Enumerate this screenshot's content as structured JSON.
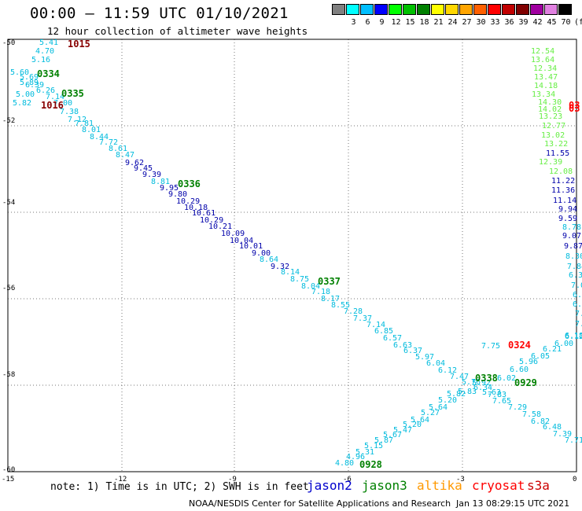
{
  "header": {
    "title": "00:00 – 11:59 UTC 01/10/2021",
    "subtitle": "12 hour collection of altimeter wave heights"
  },
  "legend": {
    "unit": "(ft)",
    "items": [
      {
        "label": "",
        "color": "#808080"
      },
      {
        "label": "3",
        "color": "#00FFFF"
      },
      {
        "label": "6",
        "color": "#00BFFF"
      },
      {
        "label": "9",
        "color": "#0000FF"
      },
      {
        "label": "12",
        "color": "#00FF00"
      },
      {
        "label": "15",
        "color": "#00C000"
      },
      {
        "label": "18",
        "color": "#008000"
      },
      {
        "label": "21",
        "color": "#FFFF00"
      },
      {
        "label": "24",
        "color": "#FFD700"
      },
      {
        "label": "27",
        "color": "#FFA500"
      },
      {
        "label": "30",
        "color": "#FF6000"
      },
      {
        "label": "33",
        "color": "#FF0000"
      },
      {
        "label": "36",
        "color": "#C00000"
      },
      {
        "label": "39",
        "color": "#800000"
      },
      {
        "label": "42",
        "color": "#A000A0"
      },
      {
        "label": "45",
        "color": "#E080E0"
      },
      {
        "label": "70",
        "color": "#000000"
      }
    ]
  },
  "axes": {
    "x_ticks": [
      "-15",
      "-12",
      "-9",
      "-6",
      "-3",
      "0"
    ],
    "y_ticks": [
      "-50",
      "-52",
      "-54",
      "-56",
      "-58",
      "-60"
    ]
  },
  "colors": {
    "jason2": "#0000CC",
    "jason3": "#008000",
    "altika": "#FF9900",
    "cryosat": "#FF0000",
    "s3a": "#CC0000",
    "cyan": "#00BBDD",
    "darkblue": "#0000AA",
    "lightgreen": "#66EE44",
    "maroon": "#880000"
  },
  "track1": [
    {
      "v": "5.41",
      "c": "cyan"
    },
    {
      "v": "4.70",
      "c": "cyan"
    },
    {
      "v": "5.16",
      "c": "cyan"
    },
    {
      "v": "5.60",
      "c": "cyan"
    },
    {
      "v": "5.69",
      "c": "cyan"
    },
    {
      "v": "5.89",
      "c": "cyan"
    },
    {
      "v": "6.39",
      "c": "cyan"
    },
    {
      "v": "6.26",
      "c": "cyan"
    },
    {
      "v": "5.00",
      "c": "cyan"
    },
    {
      "v": "7.14",
      "c": "cyan"
    },
    {
      "v": "5.82",
      "c": "cyan"
    },
    {
      "v": "7.00",
      "c": "cyan"
    },
    {
      "v": "7.38",
      "c": "cyan"
    },
    {
      "v": "7.12",
      "c": "cyan"
    },
    {
      "v": "7.81",
      "c": "cyan"
    },
    {
      "v": "8.01",
      "c": "cyan"
    },
    {
      "v": "8.44",
      "c": "cyan"
    },
    {
      "v": "7.72",
      "c": "cyan"
    },
    {
      "v": "8.61",
      "c": "cyan"
    },
    {
      "v": "8.47",
      "c": "cyan"
    },
    {
      "v": "9.62",
      "c": "darkblue"
    },
    {
      "v": "9.45",
      "c": "darkblue"
    },
    {
      "v": "9.39",
      "c": "darkblue"
    },
    {
      "v": "8.81",
      "c": "cyan"
    },
    {
      "v": "9.95",
      "c": "darkblue"
    },
    {
      "v": "9.80",
      "c": "darkblue"
    },
    {
      "v": "10.29",
      "c": "darkblue"
    },
    {
      "v": "10.18",
      "c": "darkblue"
    },
    {
      "v": "10.61",
      "c": "darkblue"
    },
    {
      "v": "10.29",
      "c": "darkblue"
    },
    {
      "v": "10.21",
      "c": "darkblue"
    },
    {
      "v": "10.09",
      "c": "darkblue"
    },
    {
      "v": "10.04",
      "c": "darkblue"
    },
    {
      "v": "10.01",
      "c": "darkblue"
    },
    {
      "v": "9.00",
      "c": "darkblue"
    },
    {
      "v": "8.64",
      "c": "cyan"
    },
    {
      "v": "9.32",
      "c": "darkblue"
    },
    {
      "v": "8.14",
      "c": "cyan"
    },
    {
      "v": "8.75",
      "c": "cyan"
    },
    {
      "v": "8.04",
      "c": "cyan"
    },
    {
      "v": "7.18",
      "c": "cyan"
    },
    {
      "v": "8.17",
      "c": "cyan"
    },
    {
      "v": "8.55",
      "c": "cyan"
    },
    {
      "v": "7.28",
      "c": "cyan"
    },
    {
      "v": "7.37",
      "c": "cyan"
    },
    {
      "v": "7.14",
      "c": "cyan"
    },
    {
      "v": "6.85",
      "c": "cyan"
    },
    {
      "v": "6.57",
      "c": "cyan"
    },
    {
      "v": "6.63",
      "c": "cyan"
    },
    {
      "v": "6.37",
      "c": "cyan"
    },
    {
      "v": "5.97",
      "c": "cyan"
    },
    {
      "v": "6.04",
      "c": "cyan"
    },
    {
      "v": "6.12",
      "c": "cyan"
    },
    {
      "v": "7.47",
      "c": "cyan"
    },
    {
      "v": "5.76",
      "c": "cyan"
    },
    {
      "v": "6.34",
      "c": "cyan"
    },
    {
      "v": "5.63",
      "c": "cyan"
    },
    {
      "v": "7.83",
      "c": "cyan"
    },
    {
      "v": "7.65",
      "c": "cyan"
    },
    {
      "v": "7.29",
      "c": "cyan"
    },
    {
      "v": "7.58",
      "c": "cyan"
    },
    {
      "v": "6.82",
      "c": "cyan"
    },
    {
      "v": "6.48",
      "c": "cyan"
    },
    {
      "v": "7.39",
      "c": "cyan"
    },
    {
      "v": "7.71",
      "c": "cyan"
    }
  ],
  "track2": [
    {
      "v": "4.80",
      "c": "cyan"
    },
    {
      "v": "4.96",
      "c": "cyan"
    },
    {
      "v": "5.31",
      "c": "cyan"
    },
    {
      "v": "5.15",
      "c": "cyan"
    },
    {
      "v": "5.87",
      "c": "cyan"
    },
    {
      "v": "5.67",
      "c": "cyan"
    },
    {
      "v": "5.47",
      "c": "cyan"
    },
    {
      "v": "5.20",
      "c": "cyan"
    },
    {
      "v": "5.64",
      "c": "cyan"
    },
    {
      "v": "5.27",
      "c": "cyan"
    },
    {
      "v": "5.64",
      "c": "cyan"
    },
    {
      "v": "5.20",
      "c": "cyan"
    },
    {
      "v": "5.82",
      "c": "cyan"
    },
    {
      "v": "5.83",
      "c": "cyan"
    },
    {
      "v": "5.92",
      "c": "cyan"
    },
    {
      "v": "6.02",
      "c": "cyan"
    },
    {
      "v": "6.60",
      "c": "cyan"
    },
    {
      "v": "5.96",
      "c": "cyan"
    },
    {
      "v": "6.05",
      "c": "cyan"
    },
    {
      "v": "6.21",
      "c": "cyan"
    },
    {
      "v": "6.00",
      "c": "cyan"
    },
    {
      "v": "6.18",
      "c": "cyan"
    },
    {
      "v": "7.75",
      "c": "cyan"
    }
  ],
  "track3": [
    {
      "v": "12.54",
      "c": "lightgreen"
    },
    {
      "v": "13.64",
      "c": "lightgreen"
    },
    {
      "v": "12.34",
      "c": "lightgreen"
    },
    {
      "v": "13.47",
      "c": "lightgreen"
    },
    {
      "v": "14.18",
      "c": "lightgreen"
    },
    {
      "v": "13.34",
      "c": "lightgreen"
    },
    {
      "v": "14.30",
      "c": "lightgreen"
    },
    {
      "v": "14.02",
      "c": "lightgreen"
    },
    {
      "v": "13.23",
      "c": "lightgreen"
    },
    {
      "v": "12.77",
      "c": "lightgreen"
    },
    {
      "v": "13.02",
      "c": "lightgreen"
    },
    {
      "v": "13.22",
      "c": "lightgreen"
    },
    {
      "v": "11.55",
      "c": "darkblue"
    },
    {
      "v": "12.39",
      "c": "lightgreen"
    },
    {
      "v": "12.08",
      "c": "lightgreen"
    },
    {
      "v": "11.22",
      "c": "darkblue"
    },
    {
      "v": "11.36",
      "c": "darkblue"
    },
    {
      "v": "11.14",
      "c": "darkblue"
    },
    {
      "v": "9.94",
      "c": "darkblue"
    },
    {
      "v": "9.59",
      "c": "darkblue"
    },
    {
      "v": "8.78",
      "c": "cyan"
    },
    {
      "v": "9.07",
      "c": "darkblue"
    },
    {
      "v": "9.87",
      "c": "darkblue"
    },
    {
      "v": "8.30",
      "c": "cyan"
    },
    {
      "v": "7.84",
      "c": "cyan"
    },
    {
      "v": "6.39",
      "c": "cyan"
    },
    {
      "v": "7.0",
      "c": "cyan"
    },
    {
      "v": "6.",
      "c": "cyan"
    },
    {
      "v": "6.",
      "c": "cyan"
    },
    {
      "v": "7.",
      "c": "cyan"
    },
    {
      "v": "7.",
      "c": "cyan"
    },
    {
      "v": "6.12",
      "c": "cyan"
    }
  ],
  "pass_labels": [
    {
      "text": "1015",
      "c": "maroon"
    },
    {
      "text": "0334",
      "c": "jason3"
    },
    {
      "text": "0335",
      "c": "jason3"
    },
    {
      "text": "1016",
      "c": "maroon"
    },
    {
      "text": "0336",
      "c": "jason3"
    },
    {
      "text": "0337",
      "c": "jason3"
    },
    {
      "text": "0324",
      "c": "cryosat"
    },
    {
      "text": "0338",
      "c": "jason3"
    },
    {
      "text": "0929",
      "c": "jason3"
    },
    {
      "text": "0928",
      "c": "jason3"
    },
    {
      "text": "03",
      "c": "cryosat"
    },
    {
      "text": "03",
      "c": "cryosat"
    }
  ],
  "note": "note: 1) Time is in UTC; 2) SWH is in feet",
  "satellites": [
    {
      "name": "jason2",
      "c": "jason2"
    },
    {
      "name": "jason3",
      "c": "jason3"
    },
    {
      "name": "altika",
      "c": "altika"
    },
    {
      "name": "cryosat",
      "c": "cryosat"
    },
    {
      "name": "s3a",
      "c": "s3a"
    }
  ],
  "footer": {
    "left": "NOAA/NESDIS Center for Satellite Applications and Research",
    "right": "Jan 13 08:29:15 UTC 2021"
  }
}
